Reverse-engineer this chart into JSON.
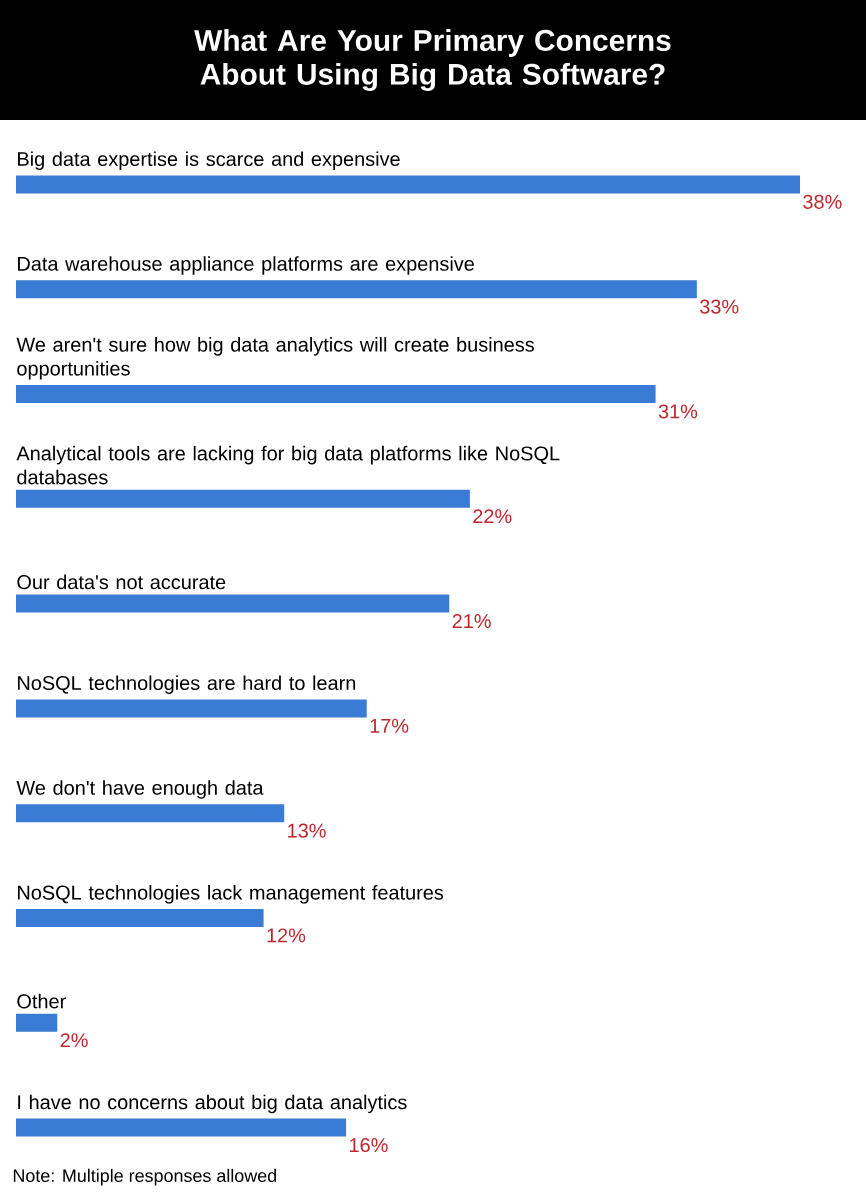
{
  "chart_data": {
    "type": "bar",
    "orientation": "horizontal",
    "title": "What Are Your Primary Concerns About Using Big Data Software?",
    "categories": [
      "Big data expertise is scarce and expensive",
      "Data warehouse appliance platforms are expensive",
      "We aren't sure how big data analytics will create business opportunities",
      "Analytical tools are lacking for big data platforms like NoSQL databases",
      "Our data's not accurate",
      "NoSQL technologies are hard to learn",
      "We don't have enough data",
      "NoSQL technologies lack management features",
      "Other",
      "I have no concerns about big data analytics"
    ],
    "values": [
      38,
      33,
      31,
      22,
      21,
      17,
      13,
      12,
      2,
      16
    ],
    "value_labels": [
      "38%",
      "33%",
      "31%",
      "22%",
      "21%",
      "17%",
      "13%",
      "12%",
      "2%",
      "16%"
    ],
    "color": "#3a7bd5",
    "tick_labels": false,
    "annotations": [
      "Note: Multiple responses allowed"
    ]
  }
}
